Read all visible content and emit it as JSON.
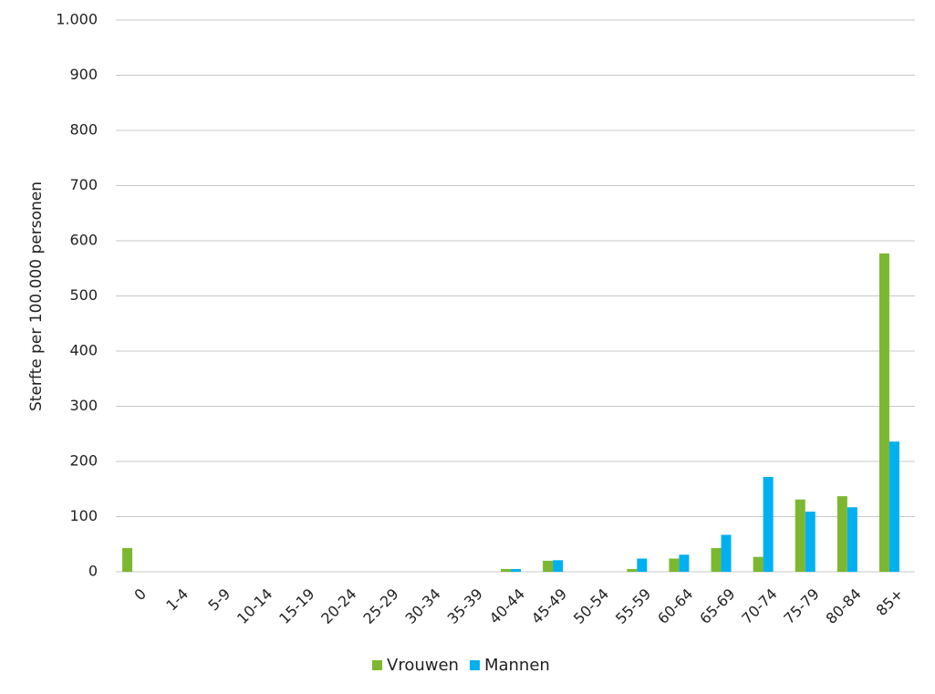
{
  "chart_data": {
    "type": "bar",
    "y_label": "Sterfte per 100.000 personen",
    "categories": [
      "0",
      "1-4",
      "5-9",
      "10-14",
      "15-19",
      "20-24",
      "25-29",
      "30-34",
      "35-39",
      "40-44",
      "45-49",
      "50-54",
      "55-59",
      "60-64",
      "65-69",
      "70-74",
      "75-79",
      "80-84",
      "85+"
    ],
    "series": [
      {
        "name": "Vrouwen",
        "color": "#7cb82f",
        "values": [
          43,
          0,
          0,
          0,
          0,
          0,
          0,
          0,
          0,
          5,
          20,
          0,
          5,
          24,
          43,
          27,
          131,
          137,
          577
        ]
      },
      {
        "name": "Mannen",
        "color": "#00b0f0",
        "values": [
          0,
          0,
          0,
          0,
          0,
          0,
          0,
          0,
          0,
          5,
          21,
          0,
          24,
          31,
          67,
          172,
          109,
          117,
          236
        ]
      }
    ],
    "ylim": [
      0,
      1000
    ],
    "yticks": [
      0,
      100,
      200,
      300,
      400,
      500,
      600,
      700,
      800,
      900,
      {
        "value": 1000,
        "label": "1.000"
      }
    ],
    "grid": true,
    "legend": "bottom"
  }
}
